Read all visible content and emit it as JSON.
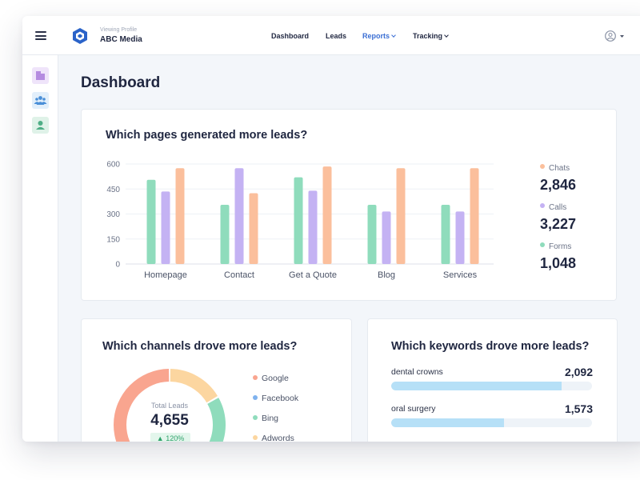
{
  "topbar": {
    "brand_sub": "Viewing Profile",
    "brand_name": "ABC Media",
    "nav": [
      {
        "label": "Dashboard",
        "active": false,
        "dropdown": false
      },
      {
        "label": "Leads",
        "active": false,
        "dropdown": false
      },
      {
        "label": "Reports",
        "active": true,
        "dropdown": true
      },
      {
        "label": "Tracking",
        "active": false,
        "dropdown": true
      }
    ],
    "menu_icon": "hamburger-icon",
    "user_icon": "user-circle-icon"
  },
  "sidebar": {
    "items": [
      {
        "icon": "building-icon",
        "color": "#b58be0",
        "bg": "#efe4fa"
      },
      {
        "icon": "team-icon",
        "color": "#4a8fd8",
        "bg": "#e2effb"
      },
      {
        "icon": "user-icon",
        "color": "#4fae86",
        "bg": "#dff2e8"
      }
    ]
  },
  "page": {
    "title": "Dashboard"
  },
  "pages_card": {
    "title": "Which pages generated more leads?",
    "legend": [
      {
        "label": "Chats",
        "value": "2,846",
        "color": "#fbbf9c"
      },
      {
        "label": "Calls",
        "value": "3,227",
        "color": "#c4b2f3"
      },
      {
        "label": "Forms",
        "value": "1,048",
        "color": "#8fdcbc"
      }
    ]
  },
  "channels_card": {
    "title": "Which channels drove more leads?",
    "total_label": "Total Leads",
    "total_value": "4,655",
    "change": "120%",
    "legend": [
      {
        "label": "Google",
        "color": "#f9a58f"
      },
      {
        "label": "Facebook",
        "color": "#7fb2ee"
      },
      {
        "label": "Bing",
        "color": "#8fdcbc"
      },
      {
        "label": "Adwords",
        "color": "#fcd6a0"
      }
    ],
    "donut_colors": {
      "google": "#f9a58f",
      "bing": "#8fdcbc",
      "adwords": "#fcd6a0"
    }
  },
  "keywords_card": {
    "title": "Which keywords drove more leads?",
    "items": [
      {
        "label": "dental crowns",
        "value": "2,092",
        "fill": 0.85
      },
      {
        "label": "oral surgery",
        "value": "1,573",
        "fill": 0.56
      }
    ]
  },
  "chart_data": {
    "type": "bar",
    "categories": [
      "Homepage",
      "Contact",
      "Get a Quote",
      "Blog",
      "Services"
    ],
    "series": [
      {
        "name": "Forms",
        "values": [
          505,
          355,
          520,
          355,
          355
        ],
        "color": "#8fdcbc"
      },
      {
        "name": "Calls",
        "values": [
          435,
          575,
          440,
          315,
          315
        ],
        "color": "#c4b2f3"
      },
      {
        "name": "Chats",
        "values": [
          575,
          425,
          585,
          575,
          575
        ],
        "color": "#fbbf9c"
      }
    ],
    "yticks": [
      0,
      150,
      300,
      450,
      600
    ],
    "ylim": [
      0,
      600
    ],
    "grid": true,
    "legend": "right"
  }
}
